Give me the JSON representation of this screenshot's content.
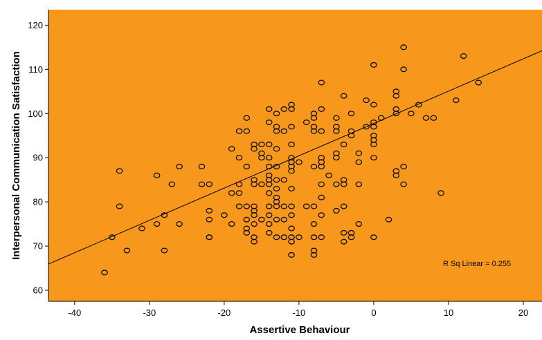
{
  "chart_data": {
    "type": "scatter",
    "xlabel": "Assertive Behaviour",
    "ylabel": "Interpersonal Communication Satisfaction",
    "xlim": [
      -43.5,
      22.5
    ],
    "ylim": [
      57.5,
      123.5
    ],
    "xticks": [
      -40,
      -30,
      -20,
      -10,
      0,
      10,
      20
    ],
    "yticks": [
      60,
      70,
      80,
      90,
      100,
      110,
      120
    ],
    "plot_background": "#F7981D",
    "marker_color": "#000000",
    "fit_line": {
      "intercept": 97.75,
      "slope": 0.7313,
      "color": "#000000"
    },
    "annotation": "R Sq Linear = 0.255",
    "grid": false,
    "legend": "none",
    "points": [
      [
        -36,
        64
      ],
      [
        -35,
        72
      ],
      [
        -34,
        79
      ],
      [
        -34,
        87
      ],
      [
        -33,
        69
      ],
      [
        -31,
        74
      ],
      [
        -29,
        75
      ],
      [
        -29,
        86
      ],
      [
        -28,
        77
      ],
      [
        -28,
        69
      ],
      [
        -27,
        84
      ],
      [
        -26,
        88
      ],
      [
        -26,
        75
      ],
      [
        -23,
        88
      ],
      [
        -23,
        84
      ],
      [
        -22,
        84
      ],
      [
        -22,
        78
      ],
      [
        -22,
        76
      ],
      [
        -22,
        72
      ],
      [
        -22,
        72
      ],
      [
        -20,
        77
      ],
      [
        -19,
        75
      ],
      [
        -19,
        82
      ],
      [
        -19,
        92
      ],
      [
        -18,
        96
      ],
      [
        -18,
        90
      ],
      [
        -18,
        84
      ],
      [
        -18,
        82
      ],
      [
        -18,
        79
      ],
      [
        -17,
        99
      ],
      [
        -17,
        96
      ],
      [
        -17,
        79
      ],
      [
        -17,
        76
      ],
      [
        -17,
        74
      ],
      [
        -17,
        73
      ],
      [
        -17,
        88
      ],
      [
        -16,
        93
      ],
      [
        -16,
        92
      ],
      [
        -16,
        85
      ],
      [
        -16,
        84
      ],
      [
        -16,
        79
      ],
      [
        -16,
        78
      ],
      [
        -16,
        77
      ],
      [
        -16,
        75
      ],
      [
        -16,
        72
      ],
      [
        -16,
        71
      ],
      [
        -15,
        93
      ],
      [
        -15,
        91
      ],
      [
        -15,
        90
      ],
      [
        -15,
        84
      ],
      [
        -15,
        76
      ],
      [
        -14,
        101
      ],
      [
        -14,
        98
      ],
      [
        -14,
        93
      ],
      [
        -14,
        90
      ],
      [
        -14,
        88
      ],
      [
        -14,
        86
      ],
      [
        -14,
        85
      ],
      [
        -14,
        84
      ],
      [
        -14,
        82
      ],
      [
        -14,
        79
      ],
      [
        -14,
        77
      ],
      [
        -14,
        75
      ],
      [
        -14,
        73
      ],
      [
        -13,
        100
      ],
      [
        -13,
        97
      ],
      [
        -13,
        96
      ],
      [
        -13,
        92
      ],
      [
        -13,
        88
      ],
      [
        -13,
        85
      ],
      [
        -13,
        83
      ],
      [
        -13,
        81
      ],
      [
        -13,
        80
      ],
      [
        -13,
        79
      ],
      [
        -13,
        76
      ],
      [
        -13,
        72
      ],
      [
        -12,
        101
      ],
      [
        -12,
        96
      ],
      [
        -12,
        85
      ],
      [
        -12,
        79
      ],
      [
        -12,
        76
      ],
      [
        -12,
        72
      ],
      [
        -11,
        102
      ],
      [
        -11,
        101
      ],
      [
        -11,
        97
      ],
      [
        -11,
        93
      ],
      [
        -11,
        90
      ],
      [
        -11,
        89
      ],
      [
        -11,
        88
      ],
      [
        -11,
        87
      ],
      [
        -11,
        83
      ],
      [
        -11,
        79
      ],
      [
        -11,
        77
      ],
      [
        -11,
        74
      ],
      [
        -11,
        72
      ],
      [
        -11,
        71
      ],
      [
        -11,
        68
      ],
      [
        -10,
        89
      ],
      [
        -10,
        72
      ],
      [
        -9,
        98
      ],
      [
        -9,
        79
      ],
      [
        -8,
        100
      ],
      [
        -8,
        99
      ],
      [
        -8,
        97
      ],
      [
        -8,
        96
      ],
      [
        -8,
        88
      ],
      [
        -8,
        79
      ],
      [
        -8,
        75
      ],
      [
        -8,
        72
      ],
      [
        -8,
        69
      ],
      [
        -8,
        68
      ],
      [
        -7,
        107
      ],
      [
        -7,
        101
      ],
      [
        -7,
        96
      ],
      [
        -7,
        90
      ],
      [
        -7,
        89
      ],
      [
        -7,
        88
      ],
      [
        -7,
        84
      ],
      [
        -7,
        81
      ],
      [
        -7,
        77
      ],
      [
        -7,
        72
      ],
      [
        -6,
        86
      ],
      [
        -5,
        99
      ],
      [
        -5,
        97
      ],
      [
        -5,
        96
      ],
      [
        -5,
        91
      ],
      [
        -5,
        90
      ],
      [
        -5,
        84
      ],
      [
        -5,
        78
      ],
      [
        -4,
        104
      ],
      [
        -4,
        93
      ],
      [
        -4,
        85
      ],
      [
        -4,
        84
      ],
      [
        -4,
        79
      ],
      [
        -4,
        73
      ],
      [
        -4,
        71
      ],
      [
        -3,
        100
      ],
      [
        -3,
        96
      ],
      [
        -3,
        95
      ],
      [
        -3,
        73
      ],
      [
        -3,
        72
      ],
      [
        -2,
        91
      ],
      [
        -2,
        89
      ],
      [
        -2,
        84
      ],
      [
        -2,
        75
      ],
      [
        -1,
        103
      ],
      [
        -1,
        97
      ],
      [
        0,
        111
      ],
      [
        0,
        102
      ],
      [
        0,
        98
      ],
      [
        0,
        97
      ],
      [
        0,
        95
      ],
      [
        0,
        94
      ],
      [
        0,
        93
      ],
      [
        0,
        90
      ],
      [
        0,
        72
      ],
      [
        1,
        99
      ],
      [
        2,
        76
      ],
      [
        3,
        105
      ],
      [
        3,
        104
      ],
      [
        3,
        101
      ],
      [
        3,
        100
      ],
      [
        3,
        87
      ],
      [
        3,
        86
      ],
      [
        4,
        115
      ],
      [
        4,
        110
      ],
      [
        4,
        88
      ],
      [
        4,
        84
      ],
      [
        5,
        100
      ],
      [
        6,
        102
      ],
      [
        7,
        99
      ],
      [
        8,
        99
      ],
      [
        9,
        82
      ],
      [
        11,
        103
      ],
      [
        12,
        113
      ],
      [
        14,
        107
      ]
    ]
  }
}
